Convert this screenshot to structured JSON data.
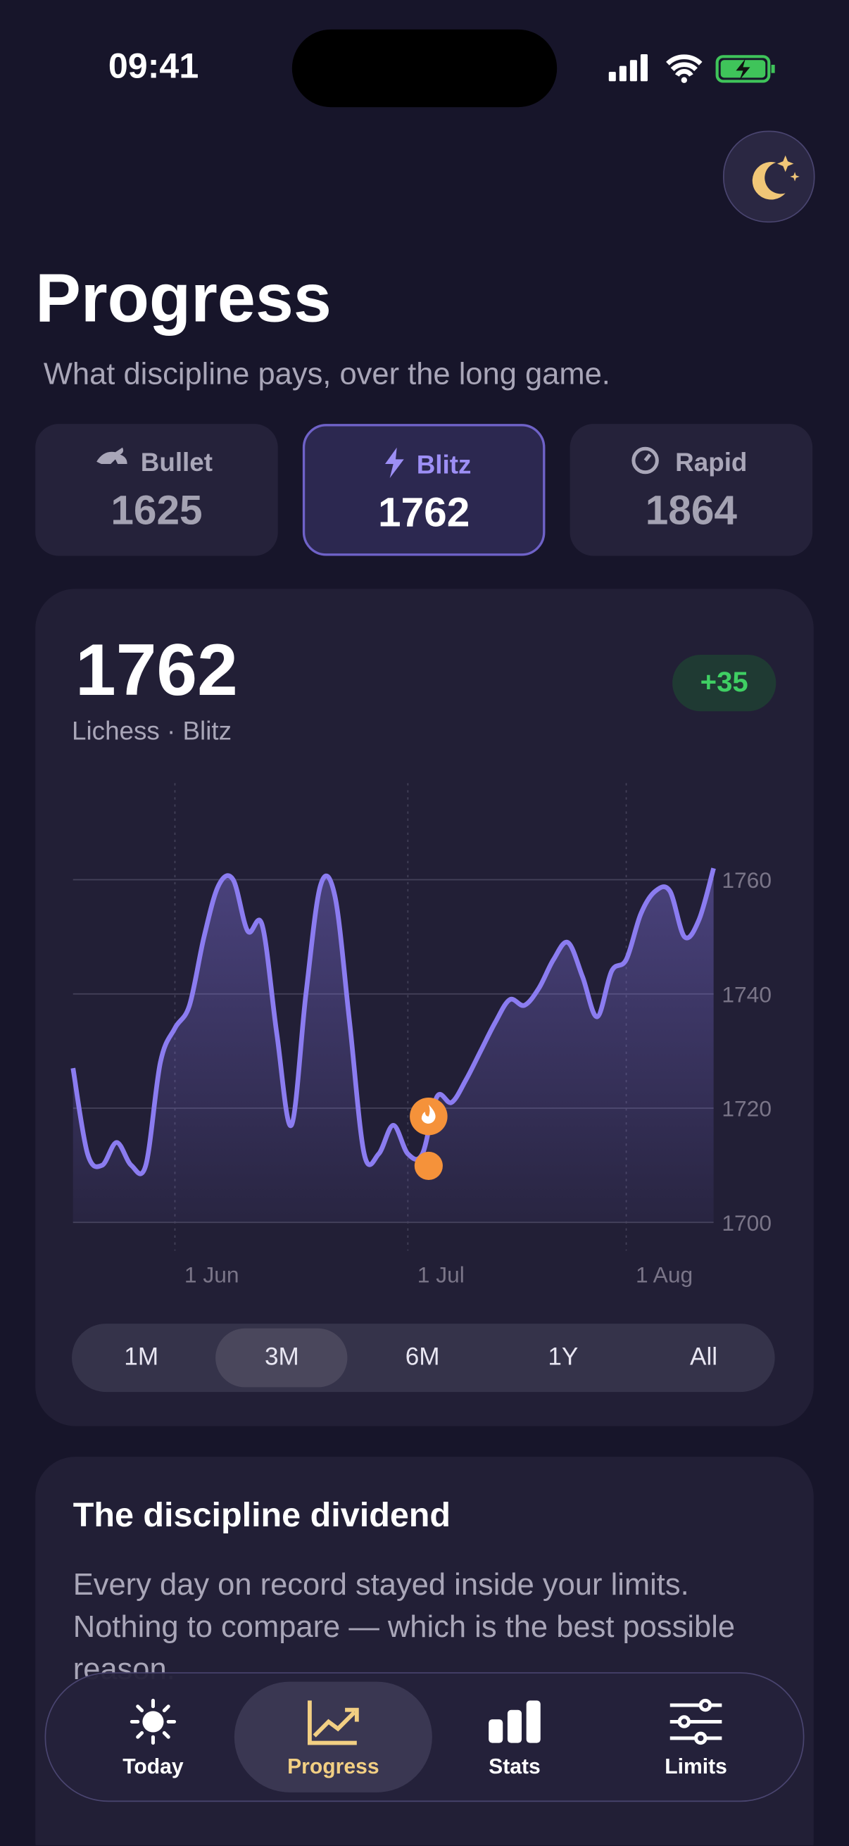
{
  "status_bar": {
    "time": "09:41"
  },
  "header": {
    "title": "Progress",
    "subtitle": "What discipline pays, over the long game."
  },
  "modes": [
    {
      "name": "Bullet",
      "rating": 1625,
      "selected": false
    },
    {
      "name": "Blitz",
      "rating": 1762,
      "selected": true
    },
    {
      "name": "Rapid",
      "rating": 1864,
      "selected": false
    }
  ],
  "chart_card": {
    "rating": 1762,
    "change": "+35",
    "source": "Lichess · Blitz",
    "periods": [
      "1M",
      "3M",
      "6M",
      "1Y",
      "All"
    ],
    "selected_period": "3M"
  },
  "chart_data": {
    "type": "line",
    "color": "#8b7cf0",
    "grid": true,
    "categories": [
      null,
      null,
      null,
      null,
      null,
      null,
      null,
      "1 Jun",
      null,
      null,
      null,
      null,
      null,
      null,
      null,
      null,
      null,
      null,
      null,
      null,
      null,
      null,
      null,
      "1 Jul",
      null,
      null,
      null,
      null,
      null,
      null,
      null,
      null,
      null,
      null,
      null,
      null,
      null,
      null,
      "1 Aug",
      null,
      null,
      null,
      null,
      null,
      null
    ],
    "values": [
      1727,
      1712,
      1710,
      1714,
      1710,
      1710,
      1728,
      1734,
      1738,
      1750,
      1759,
      1760,
      1751,
      1752,
      1733,
      1717,
      1740,
      1759,
      1757,
      1735,
      1712,
      1712,
      1717,
      1712,
      1712,
      1722,
      1721,
      1725,
      1730,
      1735,
      1739,
      1738,
      1741,
      1746,
      1749,
      1743,
      1736,
      1744,
      1746,
      1754,
      1758,
      1758,
      1750,
      1753,
      1762
    ],
    "ylim": [
      1700,
      1760
    ],
    "yticks": [
      1700,
      1720,
      1740,
      1760
    ]
  },
  "discipline": {
    "title": "The discipline dividend",
    "body": "Every day on record stayed inside your limits. Nothing to compare — which is the best possible reason."
  },
  "nav": [
    {
      "label": "Today",
      "selected": false
    },
    {
      "label": "Progress",
      "selected": true
    },
    {
      "label": "Stats",
      "selected": false
    },
    {
      "label": "Limits",
      "selected": false
    }
  ]
}
